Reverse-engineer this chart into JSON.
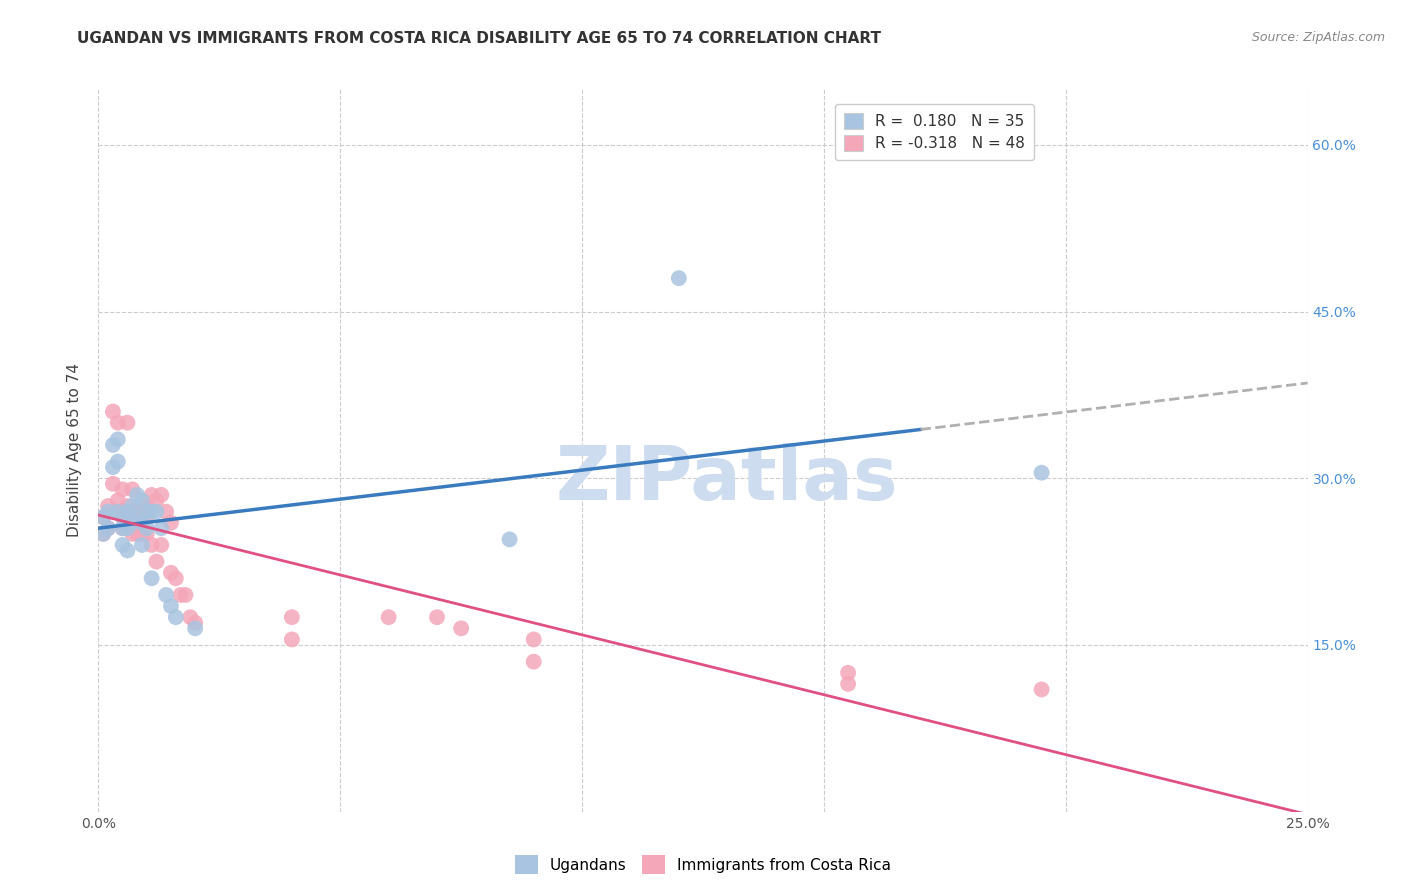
{
  "title": "UGANDAN VS IMMIGRANTS FROM COSTA RICA DISABILITY AGE 65 TO 74 CORRELATION CHART",
  "source": "Source: ZipAtlas.com",
  "ylabel": "Disability Age 65 to 74",
  "xlim": [
    0.0,
    0.25
  ],
  "ylim": [
    0.0,
    0.65
  ],
  "x_ticks": [
    0.0,
    0.05,
    0.1,
    0.15,
    0.2,
    0.25
  ],
  "y_ticks": [
    0.0,
    0.15,
    0.3,
    0.45,
    0.6
  ],
  "r_ugandan": 0.18,
  "n_ugandan": 35,
  "r_costarica": -0.318,
  "n_costarica": 48,
  "ugandan_color": "#a8c4e0",
  "costarica_color": "#f4a7b9",
  "ugandan_line_color": "#3a7bbf",
  "costarica_line_color": "#e05080",
  "trend_ext_color": "#b0b0b0",
  "watermark_color": "#cddcee",
  "background_color": "#ffffff",
  "grid_color": "#cccccc",
  "title_fontsize": 11,
  "axis_label_fontsize": 11,
  "tick_fontsize": 10,
  "ugandan_x": [
    0.001,
    0.001,
    0.002,
    0.002,
    0.003,
    0.003,
    0.004,
    0.004,
    0.004,
    0.005,
    0.005,
    0.005,
    0.006,
    0.006,
    0.006,
    0.007,
    0.007,
    0.008,
    0.008,
    0.009,
    0.009,
    0.009,
    0.01,
    0.01,
    0.011,
    0.011,
    0.012,
    0.013,
    0.014,
    0.015,
    0.016,
    0.02,
    0.085,
    0.12,
    0.195
  ],
  "ugandan_y": [
    0.265,
    0.25,
    0.27,
    0.255,
    0.33,
    0.31,
    0.335,
    0.315,
    0.27,
    0.265,
    0.255,
    0.24,
    0.27,
    0.255,
    0.235,
    0.275,
    0.26,
    0.285,
    0.265,
    0.28,
    0.26,
    0.24,
    0.27,
    0.255,
    0.27,
    0.21,
    0.27,
    0.255,
    0.195,
    0.185,
    0.175,
    0.165,
    0.245,
    0.48,
    0.305
  ],
  "costarica_x": [
    0.001,
    0.001,
    0.002,
    0.002,
    0.003,
    0.003,
    0.004,
    0.004,
    0.005,
    0.005,
    0.005,
    0.006,
    0.006,
    0.006,
    0.007,
    0.007,
    0.007,
    0.008,
    0.008,
    0.009,
    0.009,
    0.01,
    0.01,
    0.01,
    0.011,
    0.011,
    0.012,
    0.012,
    0.013,
    0.013,
    0.014,
    0.015,
    0.015,
    0.016,
    0.017,
    0.018,
    0.019,
    0.02,
    0.04,
    0.04,
    0.06,
    0.07,
    0.075,
    0.09,
    0.09,
    0.155,
    0.155,
    0.195
  ],
  "costarica_y": [
    0.265,
    0.25,
    0.275,
    0.255,
    0.36,
    0.295,
    0.35,
    0.28,
    0.29,
    0.27,
    0.255,
    0.35,
    0.275,
    0.255,
    0.29,
    0.27,
    0.25,
    0.27,
    0.25,
    0.27,
    0.25,
    0.275,
    0.265,
    0.25,
    0.285,
    0.24,
    0.28,
    0.225,
    0.285,
    0.24,
    0.27,
    0.26,
    0.215,
    0.21,
    0.195,
    0.195,
    0.175,
    0.17,
    0.175,
    0.155,
    0.175,
    0.175,
    0.165,
    0.155,
    0.135,
    0.125,
    0.115,
    0.11
  ]
}
